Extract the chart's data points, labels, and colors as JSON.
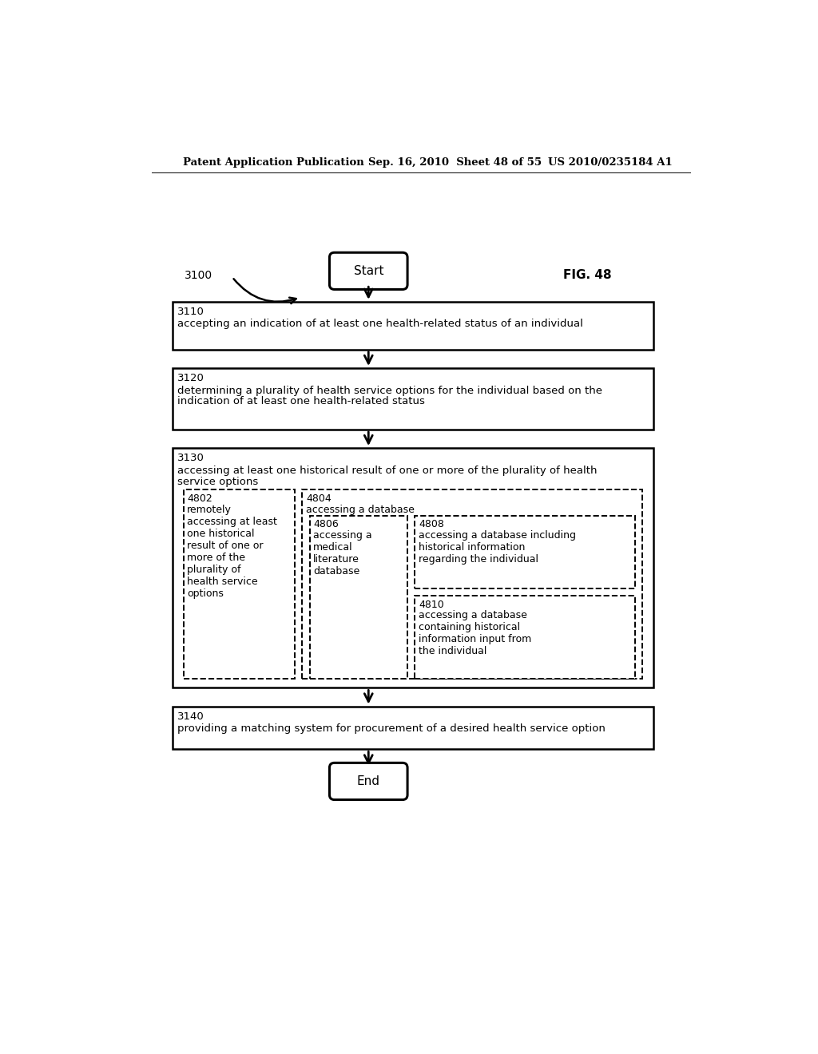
{
  "bg_color": "#ffffff",
  "header_left": "Patent Application Publication",
  "header_mid": "Sep. 16, 2010  Sheet 48 of 55",
  "header_right": "US 2010/0235184 A1",
  "fig_label": "FIG. 48",
  "label_3100": "3100",
  "start_text": "Start",
  "end_text": "End",
  "box3110_id": "3110",
  "box3110_text": "accepting an indication of at least one health-related status of an individual",
  "box3120_id": "3120",
  "box3120_line1": "determining a plurality of health service options for the individual based on the",
  "box3120_line2": "indication of at least one health-related status",
  "box3130_id": "3130",
  "box3130_line1": "accessing at least one historical result of one or more of the plurality of health",
  "box3130_line2": "service options",
  "box4802_id": "4802",
  "box4802_text": "remotely\naccessing at least\none historical\nresult of one or\nmore of the\nplurality of\nhealth service\noptions",
  "box4804_id": "4804",
  "box4804_text": "accessing a database",
  "box4806_id": "4806",
  "box4806_text": "accessing a\nmedical\nliterature\ndatabase",
  "box4808_id": "4808",
  "box4808_text": "accessing a database including\nhistorical information\nregarding the individual",
  "box4810_id": "4810",
  "box4810_text": "accessing a database\ncontaining historical\ninformation input from\nthe individual",
  "box3140_id": "3140",
  "box3140_text": "providing a matching system for procurement of a desired health service option"
}
